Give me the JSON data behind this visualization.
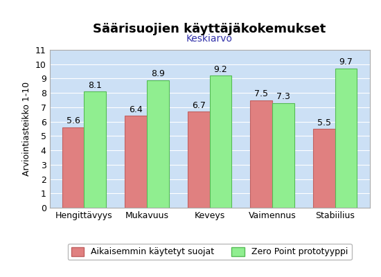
{
  "title": "Säärisuojien käyttäjäkokemukset",
  "subtitle": "Keskiarvo",
  "ylabel": "Arviointiasteikko 1-10",
  "categories": [
    "Hengittävyys",
    "Mukavuus",
    "Keveys",
    "Vaimennus",
    "Stabiilius"
  ],
  "series1_label": "Aikaisemmin käytetyt suojat",
  "series2_label": "Zero Point prototyyppi",
  "series1_values": [
    5.6,
    6.4,
    6.7,
    7.5,
    5.5
  ],
  "series2_values": [
    8.1,
    8.9,
    9.2,
    7.3,
    9.7
  ],
  "series1_color": "#E08080",
  "series2_color": "#90EE90",
  "series1_edge": "#C06060",
  "series2_edge": "#55BB55",
  "ylim": [
    0,
    11
  ],
  "yticks": [
    0,
    1,
    2,
    3,
    4,
    5,
    6,
    7,
    8,
    9,
    10,
    11
  ],
  "plot_bg": "#cce0f5",
  "fig_bg": "#ffffff",
  "bar_width": 0.35,
  "title_fontsize": 13,
  "subtitle_fontsize": 10,
  "label_fontsize": 9,
  "tick_fontsize": 9,
  "legend_fontsize": 9,
  "subtitle_color": "#3333aa"
}
